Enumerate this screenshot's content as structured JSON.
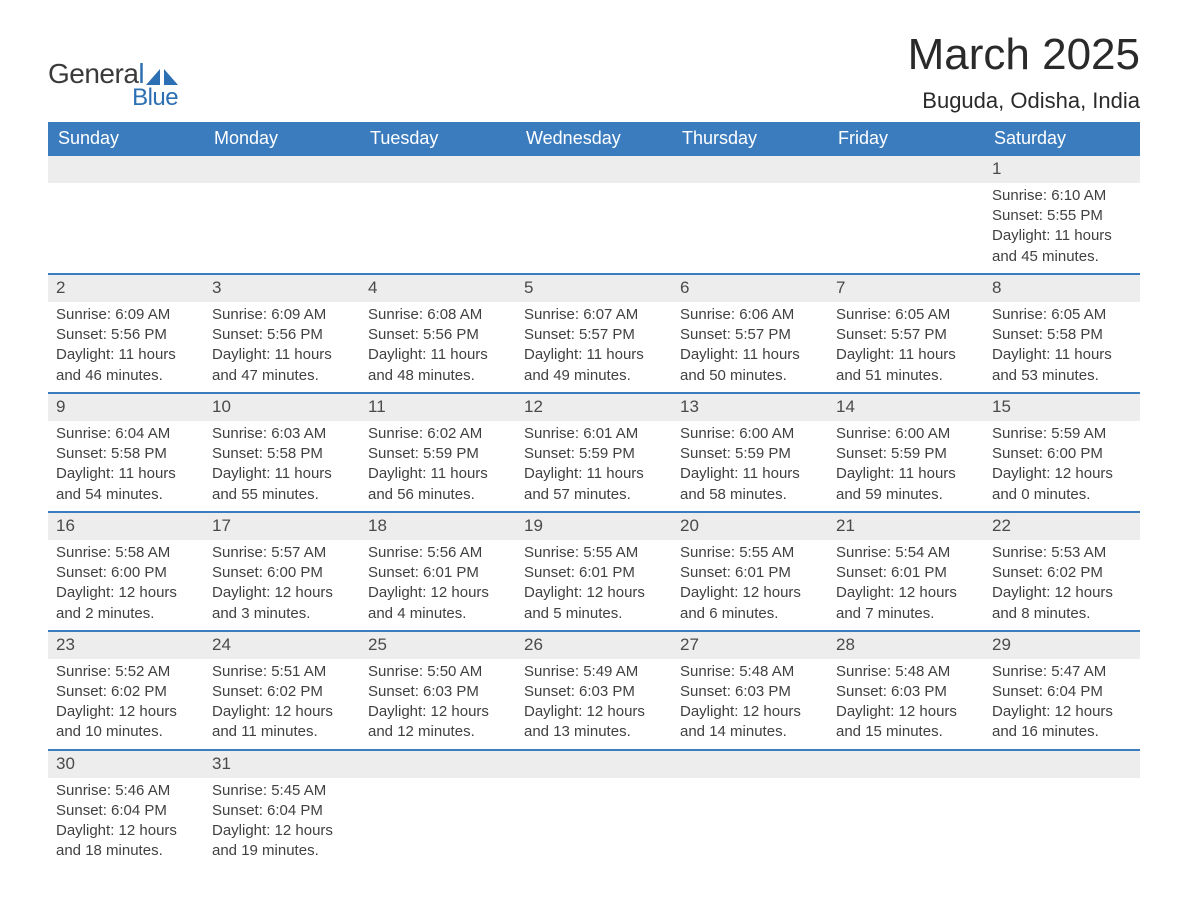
{
  "brand": {
    "general": "Genera",
    "l": "l",
    "blue": "Blue"
  },
  "title": "March 2025",
  "location": "Buguda, Odisha, India",
  "dow": [
    "Sunday",
    "Monday",
    "Tuesday",
    "Wednesday",
    "Thursday",
    "Friday",
    "Saturday"
  ],
  "colors": {
    "header_bg": "#3b7cbf",
    "header_text": "#ffffff",
    "daynum_bg": "#ededed",
    "accent": "#2d6fb3",
    "text": "#414141"
  },
  "weeks": [
    {
      "nums": [
        "",
        "",
        "",
        "",
        "",
        "",
        "1"
      ],
      "details": [
        "",
        "",
        "",
        "",
        "",
        "",
        "Sunrise: 6:10 AM\nSunset: 5:55 PM\nDaylight: 11 hours and 45 minutes."
      ]
    },
    {
      "nums": [
        "2",
        "3",
        "4",
        "5",
        "6",
        "7",
        "8"
      ],
      "details": [
        "Sunrise: 6:09 AM\nSunset: 5:56 PM\nDaylight: 11 hours and 46 minutes.",
        "Sunrise: 6:09 AM\nSunset: 5:56 PM\nDaylight: 11 hours and 47 minutes.",
        "Sunrise: 6:08 AM\nSunset: 5:56 PM\nDaylight: 11 hours and 48 minutes.",
        "Sunrise: 6:07 AM\nSunset: 5:57 PM\nDaylight: 11 hours and 49 minutes.",
        "Sunrise: 6:06 AM\nSunset: 5:57 PM\nDaylight: 11 hours and 50 minutes.",
        "Sunrise: 6:05 AM\nSunset: 5:57 PM\nDaylight: 11 hours and 51 minutes.",
        "Sunrise: 6:05 AM\nSunset: 5:58 PM\nDaylight: 11 hours and 53 minutes."
      ]
    },
    {
      "nums": [
        "9",
        "10",
        "11",
        "12",
        "13",
        "14",
        "15"
      ],
      "details": [
        "Sunrise: 6:04 AM\nSunset: 5:58 PM\nDaylight: 11 hours and 54 minutes.",
        "Sunrise: 6:03 AM\nSunset: 5:58 PM\nDaylight: 11 hours and 55 minutes.",
        "Sunrise: 6:02 AM\nSunset: 5:59 PM\nDaylight: 11 hours and 56 minutes.",
        "Sunrise: 6:01 AM\nSunset: 5:59 PM\nDaylight: 11 hours and 57 minutes.",
        "Sunrise: 6:00 AM\nSunset: 5:59 PM\nDaylight: 11 hours and 58 minutes.",
        "Sunrise: 6:00 AM\nSunset: 5:59 PM\nDaylight: 11 hours and 59 minutes.",
        "Sunrise: 5:59 AM\nSunset: 6:00 PM\nDaylight: 12 hours and 0 minutes."
      ]
    },
    {
      "nums": [
        "16",
        "17",
        "18",
        "19",
        "20",
        "21",
        "22"
      ],
      "details": [
        "Sunrise: 5:58 AM\nSunset: 6:00 PM\nDaylight: 12 hours and 2 minutes.",
        "Sunrise: 5:57 AM\nSunset: 6:00 PM\nDaylight: 12 hours and 3 minutes.",
        "Sunrise: 5:56 AM\nSunset: 6:01 PM\nDaylight: 12 hours and 4 minutes.",
        "Sunrise: 5:55 AM\nSunset: 6:01 PM\nDaylight: 12 hours and 5 minutes.",
        "Sunrise: 5:55 AM\nSunset: 6:01 PM\nDaylight: 12 hours and 6 minutes.",
        "Sunrise: 5:54 AM\nSunset: 6:01 PM\nDaylight: 12 hours and 7 minutes.",
        "Sunrise: 5:53 AM\nSunset: 6:02 PM\nDaylight: 12 hours and 8 minutes."
      ]
    },
    {
      "nums": [
        "23",
        "24",
        "25",
        "26",
        "27",
        "28",
        "29"
      ],
      "details": [
        "Sunrise: 5:52 AM\nSunset: 6:02 PM\nDaylight: 12 hours and 10 minutes.",
        "Sunrise: 5:51 AM\nSunset: 6:02 PM\nDaylight: 12 hours and 11 minutes.",
        "Sunrise: 5:50 AM\nSunset: 6:03 PM\nDaylight: 12 hours and 12 minutes.",
        "Sunrise: 5:49 AM\nSunset: 6:03 PM\nDaylight: 12 hours and 13 minutes.",
        "Sunrise: 5:48 AM\nSunset: 6:03 PM\nDaylight: 12 hours and 14 minutes.",
        "Sunrise: 5:48 AM\nSunset: 6:03 PM\nDaylight: 12 hours and 15 minutes.",
        "Sunrise: 5:47 AM\nSunset: 6:04 PM\nDaylight: 12 hours and 16 minutes."
      ]
    },
    {
      "nums": [
        "30",
        "31",
        "",
        "",
        "",
        "",
        ""
      ],
      "details": [
        "Sunrise: 5:46 AM\nSunset: 6:04 PM\nDaylight: 12 hours and 18 minutes.",
        "Sunrise: 5:45 AM\nSunset: 6:04 PM\nDaylight: 12 hours and 19 minutes.",
        "",
        "",
        "",
        "",
        ""
      ]
    }
  ]
}
